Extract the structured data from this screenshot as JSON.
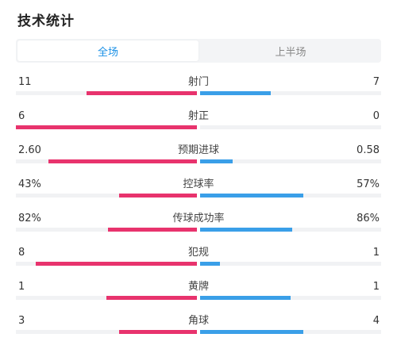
{
  "header": {
    "title": "技术统计"
  },
  "tabs": [
    {
      "label": "全场",
      "active": true
    },
    {
      "label": "上半场",
      "active": false
    }
  ],
  "colors": {
    "home": "#e8336d",
    "away": "#3a9fe8",
    "active_tab": "#1a90e6"
  },
  "stats": [
    {
      "label": "射门",
      "home": "11",
      "away": "7",
      "home_fill": 0.61,
      "away_fill": 0.39
    },
    {
      "label": "射正",
      "home": "6",
      "away": "0",
      "home_fill": 1.0,
      "away_fill": 0.0
    },
    {
      "label": "预期进球",
      "home": "2.60",
      "away": "0.58",
      "home_fill": 0.82,
      "away_fill": 0.18
    },
    {
      "label": "控球率",
      "home": "43%",
      "away": "57%",
      "home_fill": 0.43,
      "away_fill": 0.57
    },
    {
      "label": "传球成功率",
      "home": "82%",
      "away": "86%",
      "home_fill": 0.49,
      "away_fill": 0.51
    },
    {
      "label": "犯规",
      "home": "8",
      "away": "1",
      "home_fill": 0.89,
      "away_fill": 0.11
    },
    {
      "label": "黄牌",
      "home": "1",
      "away": "1",
      "home_fill": 0.5,
      "away_fill": 0.5
    },
    {
      "label": "角球",
      "home": "3",
      "away": "4",
      "home_fill": 0.43,
      "away_fill": 0.57
    }
  ]
}
